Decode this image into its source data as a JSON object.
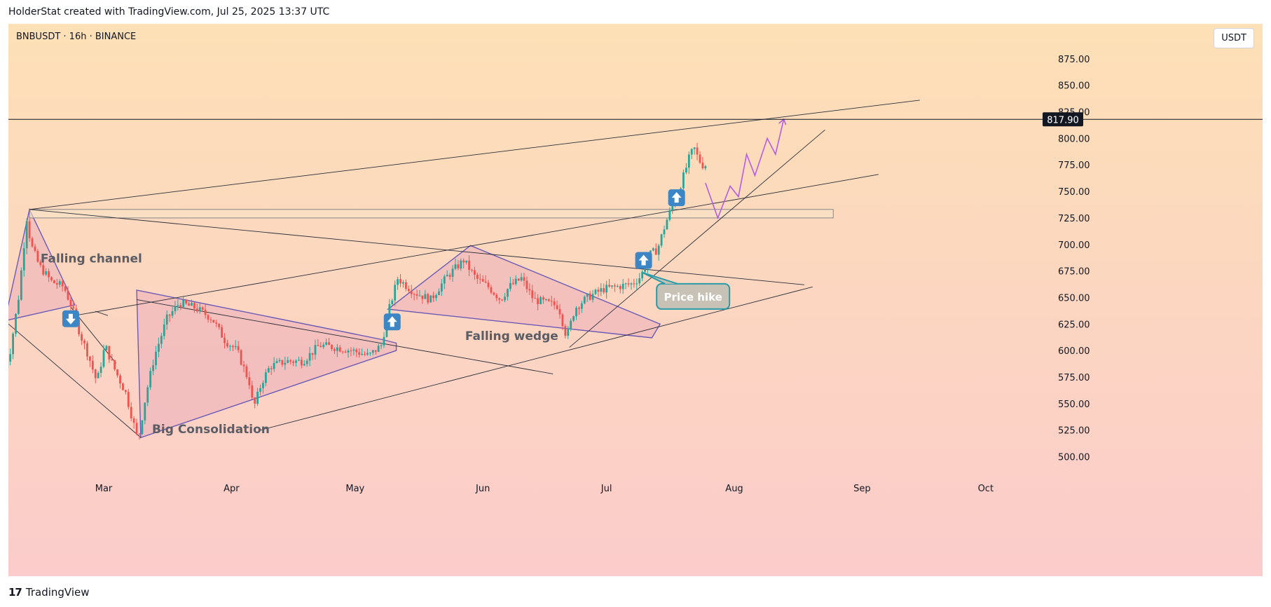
{
  "caption": "HolderStat created with TradingView.com, Jul 25, 2025 13:37 UTC",
  "symbol_line": "BNBUSDT · 16h · BINANCE",
  "currency": "USDT",
  "footer_brand": "TradingView",
  "footer_logo_mark": "17",
  "colors": {
    "bg_top": "#fde0b6",
    "bg_bottom": "#fbcccb",
    "up_candle": "#26a69a",
    "down_candle": "#ef5350",
    "pattern_line": "#6b5bb5",
    "pattern_fill": "#e9a7b8",
    "projection": "#b35ee0",
    "trend_line": "#2a2e39",
    "badge": "#3d86c6",
    "callout_border": "#2a9ba8",
    "callout_fill": "#c8c2b6"
  },
  "chart_data": {
    "type": "candlestick",
    "symbol": "BNBUSDT",
    "interval": "16h",
    "exchange": "BINANCE",
    "y_range": [
      475,
      900
    ],
    "y_ticks": [
      "875.00",
      "850.00",
      "825.00",
      "800.00",
      "775.00",
      "750.00",
      "725.00",
      "700.00",
      "675.00",
      "650.00",
      "625.00",
      "600.00",
      "575.00",
      "550.00",
      "525.00",
      "500.00"
    ],
    "x_ticks": [
      "Mar",
      "Apr",
      "May",
      "Jun",
      "Jul",
      "Aug",
      "Sep",
      "Oct"
    ],
    "x_tick_dates": [
      "2025-03-01",
      "2025-04-01",
      "2025-05-01",
      "2025-06-01",
      "2025-07-01",
      "2025-08-01",
      "2025-09-01",
      "2025-10-01"
    ],
    "x_range": [
      "2025-02-05",
      "2025-10-23"
    ],
    "price_line": {
      "value": 817.9,
      "label": "817.90"
    },
    "price_path": [
      [
        "2025-02-05",
        575
      ],
      [
        "2025-02-07",
        600
      ],
      [
        "2025-02-09",
        650
      ],
      [
        "2025-02-11",
        725
      ],
      [
        "2025-02-12",
        700
      ],
      [
        "2025-02-14",
        680
      ],
      [
        "2025-02-17",
        665
      ],
      [
        "2025-02-20",
        660
      ],
      [
        "2025-02-22",
        640
      ],
      [
        "2025-02-24",
        615
      ],
      [
        "2025-02-26",
        595
      ],
      [
        "2025-02-28",
        570
      ],
      [
        "2025-03-02",
        605
      ],
      [
        "2025-03-04",
        585
      ],
      [
        "2025-03-07",
        560
      ],
      [
        "2025-03-10",
        515
      ],
      [
        "2025-03-12",
        560
      ],
      [
        "2025-03-14",
        595
      ],
      [
        "2025-03-17",
        630
      ],
      [
        "2025-03-20",
        645
      ],
      [
        "2025-03-24",
        640
      ],
      [
        "2025-03-28",
        630
      ],
      [
        "2025-03-31",
        610
      ],
      [
        "2025-04-03",
        600
      ],
      [
        "2025-04-06",
        570
      ],
      [
        "2025-04-07",
        545
      ],
      [
        "2025-04-09",
        570
      ],
      [
        "2025-04-11",
        585
      ],
      [
        "2025-04-15",
        590
      ],
      [
        "2025-04-19",
        590
      ],
      [
        "2025-04-23",
        605
      ],
      [
        "2025-04-27",
        603
      ],
      [
        "2025-05-01",
        600
      ],
      [
        "2025-05-05",
        595
      ],
      [
        "2025-05-08",
        605
      ],
      [
        "2025-05-10",
        640
      ],
      [
        "2025-05-12",
        668
      ],
      [
        "2025-05-16",
        655
      ],
      [
        "2025-05-20",
        648
      ],
      [
        "2025-05-24",
        670
      ],
      [
        "2025-05-28",
        685
      ],
      [
        "2025-05-31",
        668
      ],
      [
        "2025-06-03",
        660
      ],
      [
        "2025-06-06",
        648
      ],
      [
        "2025-06-08",
        660
      ],
      [
        "2025-06-11",
        668
      ],
      [
        "2025-06-14",
        648
      ],
      [
        "2025-06-17",
        645
      ],
      [
        "2025-06-20",
        642
      ],
      [
        "2025-06-22",
        612
      ],
      [
        "2025-06-24",
        640
      ],
      [
        "2025-06-27",
        650
      ],
      [
        "2025-07-01",
        658
      ],
      [
        "2025-07-04",
        660
      ],
      [
        "2025-07-08",
        663
      ],
      [
        "2025-07-10",
        670
      ],
      [
        "2025-07-12",
        690
      ],
      [
        "2025-07-14",
        695
      ],
      [
        "2025-07-16",
        720
      ],
      [
        "2025-07-18",
        740
      ],
      [
        "2025-07-20",
        760
      ],
      [
        "2025-07-22",
        785
      ],
      [
        "2025-07-23",
        790
      ],
      [
        "2025-07-24",
        780
      ],
      [
        "2025-07-25",
        775
      ]
    ],
    "projection_path": [
      [
        "2025-07-25",
        758
      ],
      [
        "2025-07-28",
        725
      ],
      [
        "2025-07-31",
        755
      ],
      [
        "2025-08-02",
        745
      ],
      [
        "2025-08-04",
        785
      ],
      [
        "2025-08-06",
        765
      ],
      [
        "2025-08-09",
        800
      ],
      [
        "2025-08-11",
        785
      ],
      [
        "2025-08-13",
        818
      ]
    ],
    "lines": [
      {
        "from": [
          "2025-02-11",
          733
        ],
        "to": [
          "2025-09-15",
          836
        ]
      },
      {
        "from": [
          "2025-02-11",
          733
        ],
        "to": [
          "2025-08-18",
          662
        ]
      },
      {
        "from": [
          "2025-02-05",
          628
        ],
        "to": [
          "2025-03-10",
          518
        ]
      },
      {
        "from": [
          "2025-02-22",
          633
        ],
        "to": [
          "2025-09-05",
          766
        ]
      },
      {
        "from": [
          "2025-03-09",
          648
        ],
        "to": [
          "2025-06-18",
          578
        ]
      },
      {
        "from": [
          "2025-04-08",
          525
        ],
        "to": [
          "2025-08-20",
          660
        ]
      },
      {
        "from": [
          "2025-06-22",
          603
        ],
        "to": [
          "2025-08-23",
          808
        ]
      },
      {
        "from": [
          "2025-02-21",
          641
        ],
        "to": [
          "2025-03-04",
          588
        ]
      },
      {
        "from": [
          "2025-02-27",
          637
        ],
        "to": [
          "2025-03-02",
          633
        ]
      }
    ],
    "patterns": [
      {
        "label": "Falling channel",
        "points": [
          [
            "2025-02-11",
            733
          ],
          [
            "2025-02-22",
            643
          ],
          [
            "2025-02-05",
            628
          ]
        ]
      },
      {
        "label": "Big Consolidation",
        "points": [
          [
            "2025-03-09",
            657
          ],
          [
            "2025-05-08",
            610
          ],
          [
            "2025-05-11",
            607
          ],
          [
            "2025-05-11",
            600
          ],
          [
            "2025-03-10",
            518
          ]
        ]
      },
      {
        "label": "Falling wedge",
        "points": [
          [
            "2025-05-09",
            639
          ],
          [
            "2025-05-29",
            699
          ],
          [
            "2025-07-14",
            625
          ],
          [
            "2025-07-12",
            612
          ]
        ]
      }
    ],
    "zone": {
      "from": [
        "2025-02-11",
        733
      ],
      "to": [
        "2025-08-25",
        725
      ]
    },
    "annotations": [
      {
        "text": "Falling channel",
        "at": [
          "2025-02-26",
          683
        ]
      },
      {
        "text": "Big Consolidation",
        "at": [
          "2025-03-27",
          522
        ]
      },
      {
        "text": "Falling wedge",
        "at": [
          "2025-06-08",
          610
        ]
      },
      {
        "text": "Price hike",
        "at": [
          "2025-07-22",
          651
        ]
      }
    ],
    "arrows": [
      {
        "dir": "down",
        "at": [
          "2025-02-21",
          630
        ]
      },
      {
        "dir": "up",
        "at": [
          "2025-05-10",
          627
        ]
      },
      {
        "dir": "up",
        "at": [
          "2025-07-10",
          685
        ]
      },
      {
        "dir": "up",
        "at": [
          "2025-07-18",
          744
        ]
      }
    ]
  }
}
